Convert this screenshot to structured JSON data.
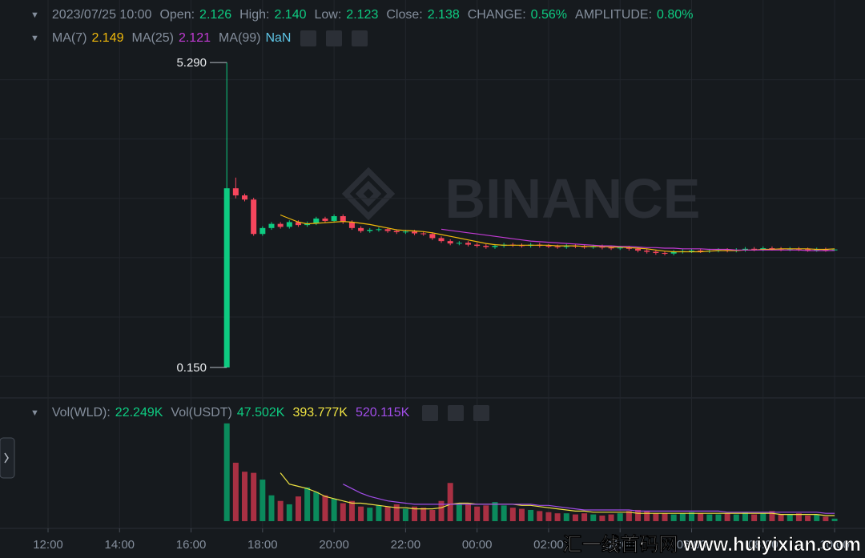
{
  "header": {
    "datetime": "2023/07/25 10:00",
    "fields": [
      {
        "label": "Open:",
        "value": "2.126"
      },
      {
        "label": "High:",
        "value": "2.140"
      },
      {
        "label": "Low:",
        "value": "2.123"
      },
      {
        "label": "Close:",
        "value": "2.138"
      },
      {
        "label": "CHANGE:",
        "value": "0.56%"
      },
      {
        "label": "AMPLITUDE:",
        "value": "0.80%"
      }
    ]
  },
  "overlay_watermark": "汇一线首码网 www.huiyixian.com",
  "chart_data": [
    {
      "type": "candlestick",
      "watermark": "BINANCE",
      "up_color": "#0ecb81",
      "down_color": "#f6465d",
      "xlim": [
        10.656,
        34.85
      ],
      "ylim": [
        -0.336,
        5.534
      ],
      "xticks": [
        {
          "value": 12,
          "label": "12:00"
        },
        {
          "value": 14,
          "label": "14:00"
        },
        {
          "value": 16,
          "label": "16:00"
        },
        {
          "value": 18,
          "label": "18:00"
        },
        {
          "value": 20,
          "label": "20:00"
        },
        {
          "value": 22,
          "label": "22:00"
        },
        {
          "value": 24,
          "label": "00:00"
        },
        {
          "value": 26,
          "label": "02:00"
        },
        {
          "value": 28,
          "label": "04:00"
        },
        {
          "value": 30,
          "label": "06:00"
        },
        {
          "value": 32,
          "label": "08:00"
        },
        {
          "value": 34,
          "label": "10:00"
        }
      ],
      "grid_levels": [
        0,
        1,
        2,
        3,
        4,
        5
      ],
      "high_marker": {
        "value": 5.29,
        "label": "5.290"
      },
      "low_marker": {
        "value": 0.15,
        "label": "0.150"
      },
      "x": [
        17,
        17.25,
        17.5,
        17.75,
        18,
        18.25,
        18.5,
        18.75,
        19,
        19.25,
        19.5,
        19.75,
        20,
        20.25,
        20.5,
        20.75,
        21,
        21.25,
        21.5,
        21.75,
        22,
        22.25,
        22.5,
        22.75,
        23,
        23.25,
        23.5,
        23.75,
        24,
        24.25,
        24.5,
        24.75,
        25,
        25.25,
        25.5,
        25.75,
        26,
        26.25,
        26.5,
        26.75,
        27,
        27.25,
        27.5,
        27.75,
        28,
        28.25,
        28.5,
        28.75,
        29,
        29.25,
        29.5,
        29.75,
        30,
        30.25,
        30.5,
        30.75,
        31,
        31.25,
        31.5,
        31.75,
        32,
        32.25,
        32.5,
        32.75,
        33,
        33.25,
        33.5,
        33.75,
        34
      ],
      "open": [
        0.15,
        3.17,
        3.05,
        2.98,
        2.4,
        2.5,
        2.57,
        2.52,
        2.6,
        2.55,
        2.58,
        2.66,
        2.62,
        2.7,
        2.6,
        2.5,
        2.45,
        2.47,
        2.48,
        2.45,
        2.43,
        2.44,
        2.41,
        2.4,
        2.33,
        2.28,
        2.24,
        2.25,
        2.22,
        2.2,
        2.18,
        2.2,
        2.22,
        2.21,
        2.2,
        2.22,
        2.2,
        2.19,
        2.18,
        2.2,
        2.19,
        2.18,
        2.19,
        2.17,
        2.16,
        2.17,
        2.15,
        2.12,
        2.1,
        2.08,
        2.07,
        2.1,
        2.11,
        2.12,
        2.11,
        2.12,
        2.13,
        2.12,
        2.13,
        2.15,
        2.14,
        2.16,
        2.15,
        2.14,
        2.15,
        2.14,
        2.13,
        2.14,
        2.126
      ],
      "high": [
        5.29,
        3.35,
        3.08,
        3.01,
        2.53,
        2.6,
        2.6,
        2.63,
        2.63,
        2.61,
        2.69,
        2.69,
        2.73,
        2.73,
        2.63,
        2.53,
        2.5,
        2.51,
        2.51,
        2.48,
        2.47,
        2.47,
        2.44,
        2.43,
        2.36,
        2.31,
        2.28,
        2.28,
        2.25,
        2.23,
        2.23,
        2.25,
        2.25,
        2.24,
        2.25,
        2.25,
        2.23,
        2.22,
        2.23,
        2.23,
        2.22,
        2.22,
        2.22,
        2.2,
        2.2,
        2.2,
        2.18,
        2.15,
        2.13,
        2.11,
        2.13,
        2.14,
        2.15,
        2.15,
        2.15,
        2.16,
        2.16,
        2.16,
        2.18,
        2.18,
        2.19,
        2.19,
        2.18,
        2.18,
        2.18,
        2.17,
        2.17,
        2.17,
        2.14
      ],
      "low": [
        0.15,
        3.0,
        2.95,
        2.37,
        2.37,
        2.47,
        2.49,
        2.49,
        2.52,
        2.52,
        2.55,
        2.59,
        2.59,
        2.57,
        2.47,
        2.42,
        2.42,
        2.44,
        2.42,
        2.4,
        2.4,
        2.38,
        2.37,
        2.3,
        2.25,
        2.21,
        2.21,
        2.19,
        2.17,
        2.15,
        2.15,
        2.17,
        2.18,
        2.17,
        2.17,
        2.17,
        2.16,
        2.15,
        2.15,
        2.16,
        2.15,
        2.15,
        2.14,
        2.13,
        2.13,
        2.12,
        2.09,
        2.07,
        2.05,
        2.04,
        2.04,
        2.07,
        2.08,
        2.08,
        2.08,
        2.09,
        2.09,
        2.09,
        2.1,
        2.11,
        2.11,
        2.12,
        2.11,
        2.11,
        2.11,
        2.1,
        2.1,
        2.1,
        2.123
      ],
      "close": [
        3.17,
        3.05,
        2.98,
        2.4,
        2.5,
        2.57,
        2.52,
        2.6,
        2.55,
        2.58,
        2.66,
        2.62,
        2.7,
        2.6,
        2.5,
        2.45,
        2.47,
        2.48,
        2.45,
        2.43,
        2.44,
        2.41,
        2.4,
        2.33,
        2.28,
        2.24,
        2.25,
        2.22,
        2.2,
        2.18,
        2.2,
        2.22,
        2.21,
        2.2,
        2.22,
        2.2,
        2.19,
        2.18,
        2.2,
        2.19,
        2.18,
        2.19,
        2.17,
        2.16,
        2.17,
        2.15,
        2.12,
        2.1,
        2.08,
        2.07,
        2.1,
        2.11,
        2.12,
        2.11,
        2.12,
        2.13,
        2.12,
        2.13,
        2.15,
        2.14,
        2.16,
        2.15,
        2.14,
        2.15,
        2.14,
        2.13,
        2.14,
        2.126,
        2.138
      ],
      "lines": [
        {
          "name": "MA(7)",
          "color": "#f0b90b",
          "value_label": "2.149",
          "values": [
            null,
            null,
            null,
            null,
            null,
            null,
            2.72,
            2.66,
            2.6,
            2.57,
            2.58,
            2.59,
            2.6,
            2.61,
            2.6,
            2.58,
            2.56,
            2.53,
            2.5,
            2.47,
            2.46,
            2.45,
            2.44,
            2.42,
            2.39,
            2.36,
            2.33,
            2.3,
            2.27,
            2.24,
            2.22,
            2.21,
            2.21,
            2.21,
            2.21,
            2.21,
            2.21,
            2.2,
            2.2,
            2.2,
            2.19,
            2.19,
            2.19,
            2.18,
            2.18,
            2.17,
            2.16,
            2.15,
            2.13,
            2.11,
            2.1,
            2.1,
            2.1,
            2.1,
            2.11,
            2.12,
            2.12,
            2.12,
            2.13,
            2.13,
            2.14,
            2.14,
            2.15,
            2.15,
            2.15,
            2.15,
            2.14,
            2.14,
            2.149
          ]
        },
        {
          "name": "MA(25)",
          "color": "#c23bd4",
          "value_label": "2.121",
          "values": [
            null,
            null,
            null,
            null,
            null,
            null,
            null,
            null,
            null,
            null,
            null,
            null,
            null,
            null,
            null,
            null,
            null,
            null,
            null,
            null,
            null,
            null,
            null,
            null,
            2.48,
            2.46,
            2.44,
            2.42,
            2.4,
            2.38,
            2.36,
            2.34,
            2.32,
            2.3,
            2.28,
            2.27,
            2.26,
            2.25,
            2.24,
            2.23,
            2.22,
            2.21,
            2.2,
            2.2,
            2.19,
            2.19,
            2.18,
            2.17,
            2.17,
            2.16,
            2.16,
            2.15,
            2.15,
            2.15,
            2.14,
            2.14,
            2.14,
            2.13,
            2.13,
            2.13,
            2.13,
            2.13,
            2.13,
            2.13,
            2.13,
            2.12,
            2.12,
            2.12,
            2.121
          ]
        }
      ],
      "extra_legend": {
        "name": "MA(99)",
        "value_label": "NaN",
        "color": "#5ec4e5"
      }
    },
    {
      "type": "bar",
      "ylim": [
        0,
        1040
      ],
      "legend": [
        {
          "label": "Vol(WLD):",
          "value": "22.249K",
          "color": "#0ecb81"
        },
        {
          "label": "Vol(USDT)",
          "value": "47.502K",
          "color": "#0ecb81"
        },
        {
          "value": "393.777K",
          "color": "#f0e442"
        },
        {
          "value": "520.115K",
          "color": "#a14de8"
        }
      ],
      "values": [
        870,
        520,
        440,
        430,
        370,
        230,
        180,
        150,
        220,
        300,
        260,
        230,
        200,
        160,
        180,
        130,
        120,
        140,
        130,
        150,
        110,
        130,
        120,
        100,
        180,
        340,
        160,
        150,
        130,
        140,
        170,
        140,
        120,
        110,
        100,
        90,
        80,
        70,
        70,
        60,
        70,
        60,
        50,
        60,
        70,
        90,
        100,
        90,
        70,
        70,
        60,
        70,
        80,
        70,
        60,
        60,
        70,
        60,
        80,
        60,
        70,
        90,
        60,
        60,
        70,
        50,
        60,
        40,
        22.249
      ],
      "lines": [
        {
          "color": "#f0e442",
          "values": [
            null,
            null,
            null,
            null,
            null,
            null,
            430,
            330,
            310,
            290,
            260,
            220,
            200,
            180,
            160,
            160,
            150,
            140,
            130,
            120,
            120,
            110,
            110,
            110,
            120,
            150,
            160,
            160,
            150,
            150,
            150,
            150,
            150,
            140,
            140,
            130,
            120,
            110,
            100,
            90,
            90,
            80,
            80,
            80,
            80,
            80,
            70,
            70,
            70,
            70,
            70,
            70,
            70,
            70,
            70,
            70,
            70,
            70,
            70,
            70,
            70,
            70,
            60,
            60,
            60,
            60,
            60,
            50,
            50
          ]
        },
        {
          "color": "#a14de8",
          "values": [
            null,
            null,
            null,
            null,
            null,
            null,
            null,
            null,
            null,
            null,
            null,
            null,
            null,
            330,
            290,
            250,
            220,
            200,
            180,
            170,
            160,
            150,
            150,
            150,
            150,
            150,
            150,
            150,
            150,
            150,
            150,
            150,
            150,
            150,
            150,
            140,
            140,
            130,
            120,
            110,
            100,
            100,
            100,
            100,
            100,
            100,
            90,
            90,
            90,
            90,
            90,
            90,
            90,
            90,
            90,
            90,
            80,
            80,
            80,
            80,
            80,
            80,
            80,
            80,
            80,
            80,
            80,
            70,
            70
          ]
        }
      ]
    }
  ]
}
